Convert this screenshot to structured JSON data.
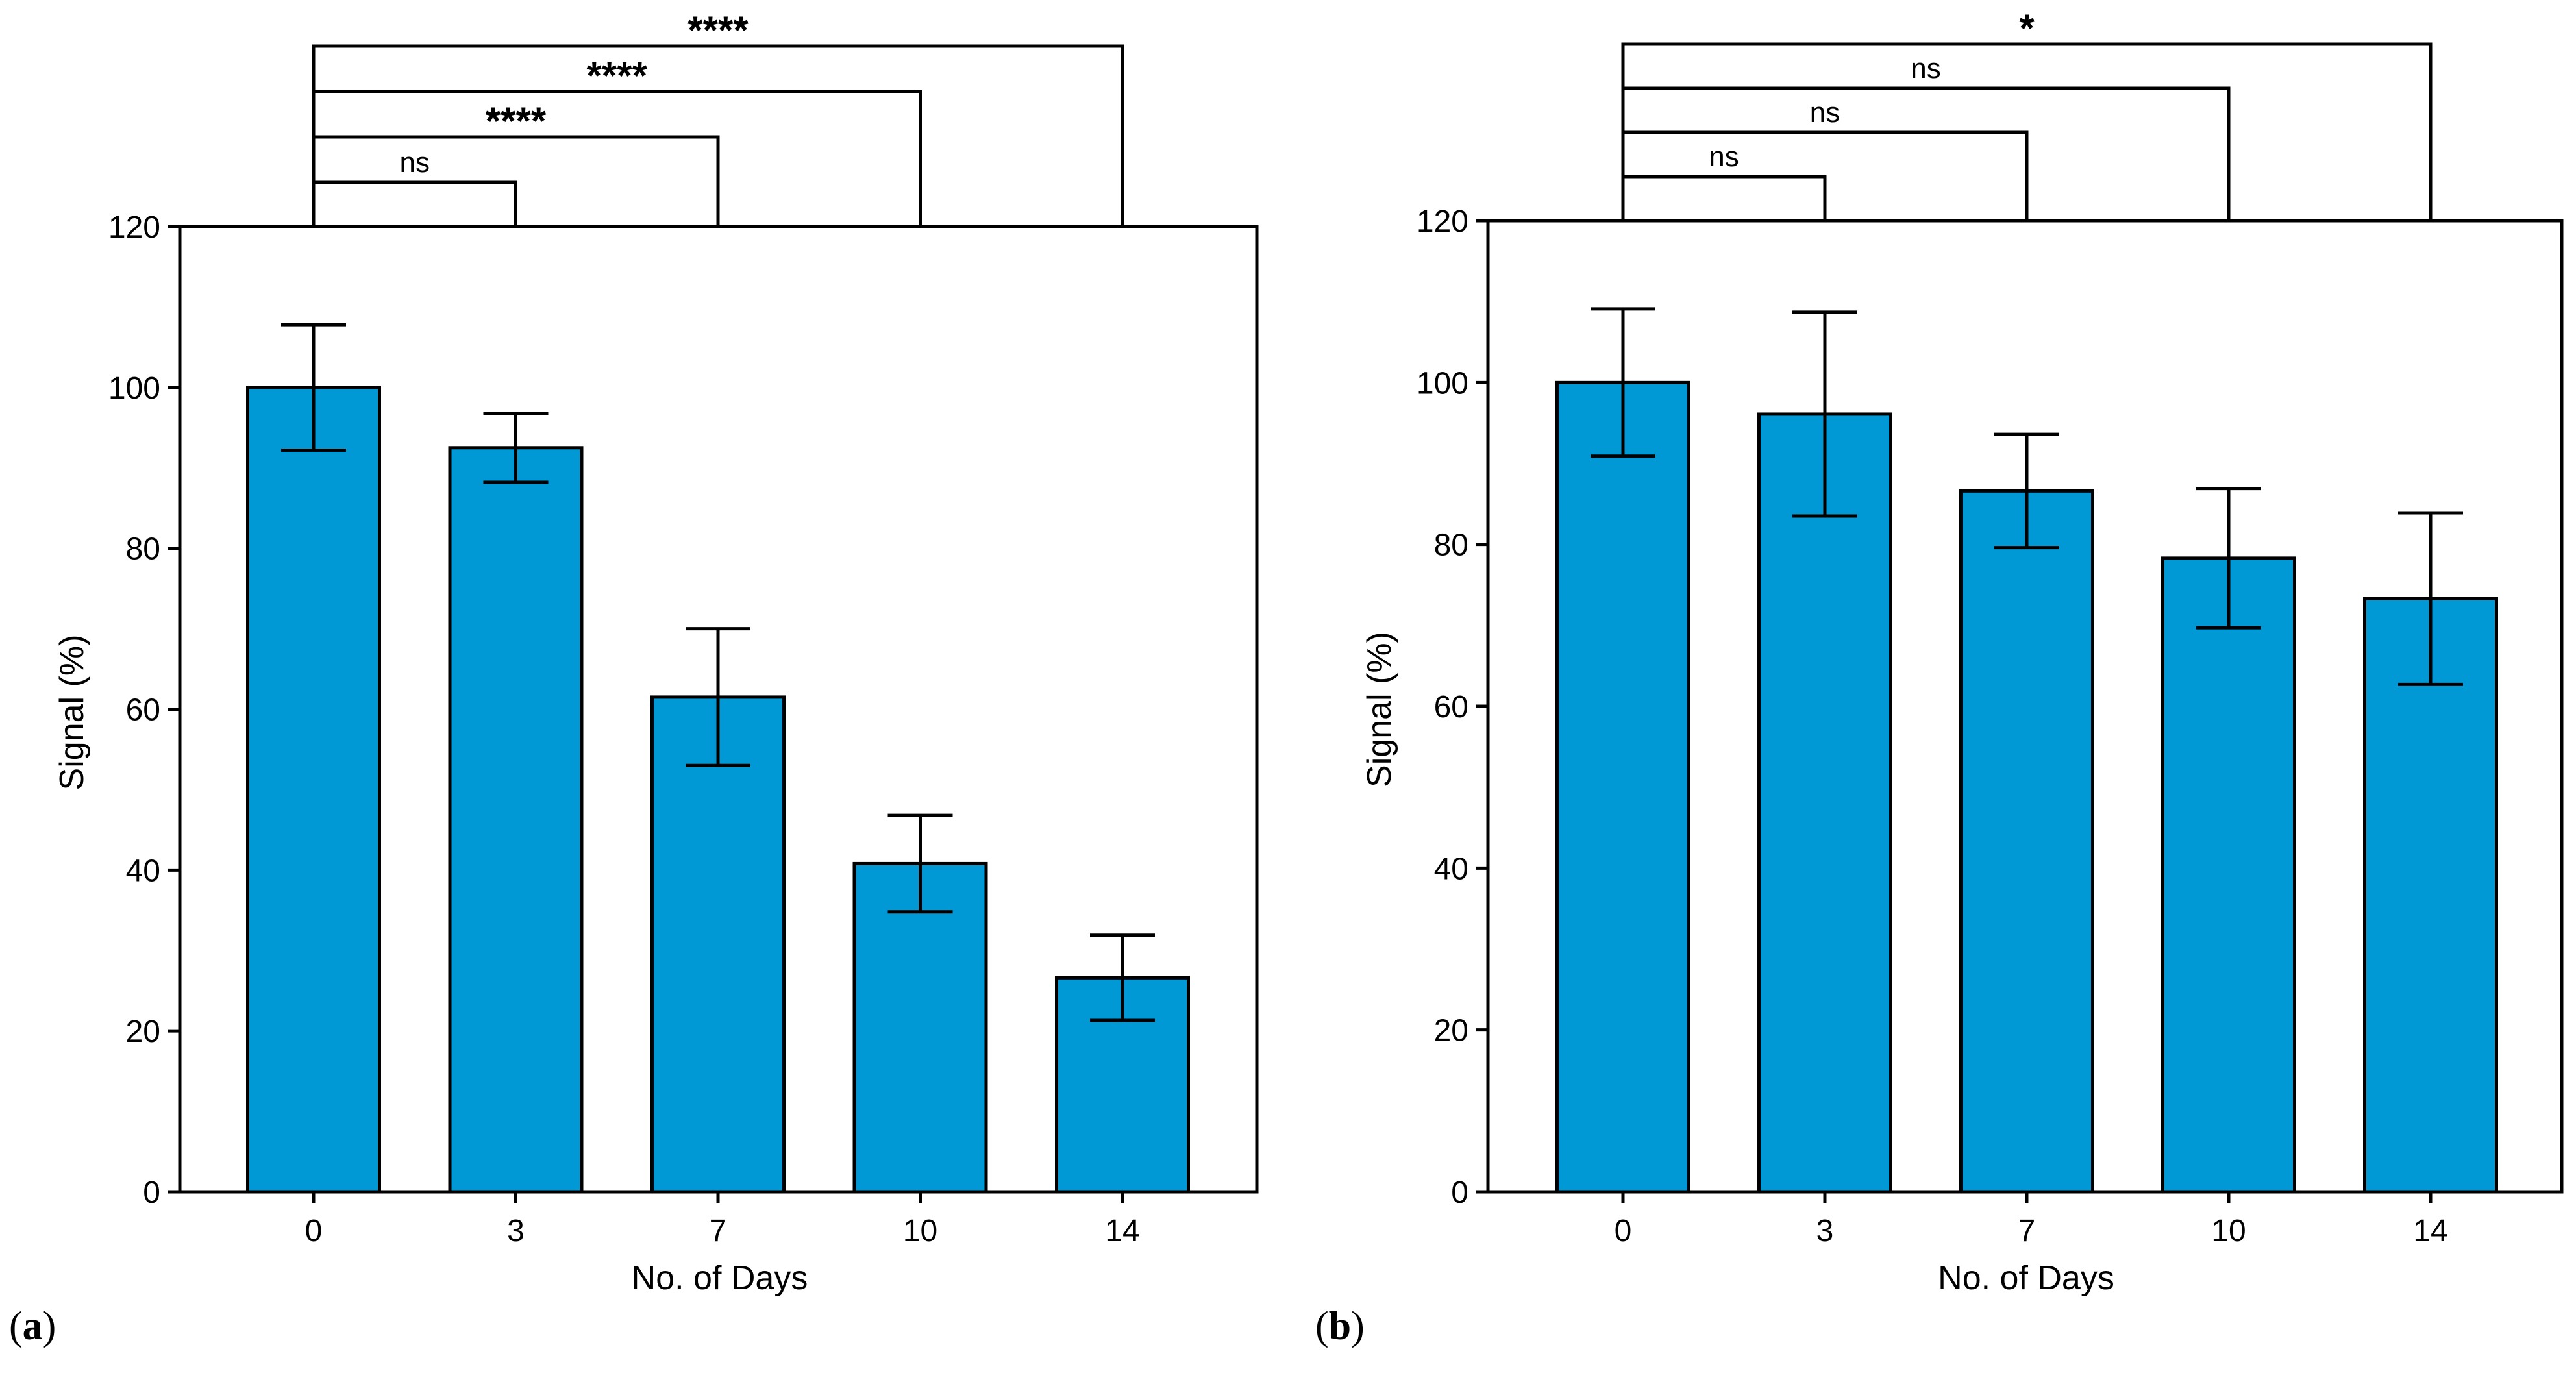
{
  "chart_data": [
    {
      "panel": "a",
      "type": "bar",
      "categories": [
        "0",
        "3",
        "7",
        "10",
        "14"
      ],
      "values": [
        100,
        92.5,
        61.5,
        40.8,
        26.6
      ],
      "errors": [
        7.8,
        4.3,
        8.5,
        6.0,
        5.3
      ],
      "xlabel": "No. of Days",
      "ylabel": "Signal (%)",
      "ylim": [
        0,
        120
      ],
      "yticks": [
        0,
        20,
        40,
        60,
        80,
        100,
        120
      ],
      "bar_color": "#0099D6",
      "significance": [
        {
          "from": "0",
          "to": "3",
          "label": "ns"
        },
        {
          "from": "0",
          "to": "7",
          "label": "****"
        },
        {
          "from": "0",
          "to": "10",
          "label": "****"
        },
        {
          "from": "0",
          "to": "14",
          "label": "****"
        }
      ]
    },
    {
      "panel": "b",
      "type": "bar",
      "categories": [
        "0",
        "3",
        "7",
        "10",
        "14"
      ],
      "values": [
        100,
        96.1,
        86.6,
        78.3,
        73.3
      ],
      "errors": [
        9.1,
        12.6,
        7.0,
        8.6,
        10.6
      ],
      "xlabel": "No. of Days",
      "ylabel": "Signal (%)",
      "ylim": [
        0,
        120
      ],
      "yticks": [
        0,
        20,
        40,
        60,
        80,
        100,
        120
      ],
      "bar_color": "#0099D6",
      "significance": [
        {
          "from": "0",
          "to": "3",
          "label": "ns"
        },
        {
          "from": "0",
          "to": "7",
          "label": "ns"
        },
        {
          "from": "0",
          "to": "10",
          "label": "ns"
        },
        {
          "from": "0",
          "to": "14",
          "label": "*"
        }
      ]
    }
  ],
  "panel_labels": [
    {
      "letter": "a",
      "text": "(a)"
    },
    {
      "letter": "b",
      "text": "(b)"
    }
  ]
}
